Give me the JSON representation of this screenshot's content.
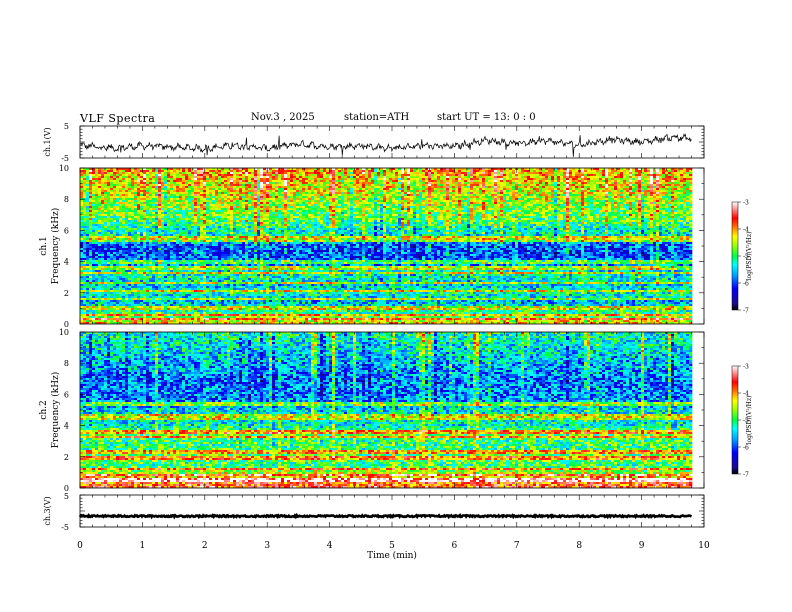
{
  "header": {
    "title": "VLF  Spectra",
    "date": "Nov.3  , 2025",
    "station": "station=ATH",
    "start_ut": "start  UT  =    13: 0   : 0"
  },
  "chart_data": [
    {
      "type": "line",
      "panel": "ch1-waveform",
      "ylabel": "ch.1(V)",
      "yticks": [
        "5",
        "-5"
      ],
      "ylim": [
        -5,
        5
      ],
      "xlim": [
        0,
        10
      ],
      "data_end_min": 9.8,
      "trend": {
        "x": [
          0,
          0.5,
          1.0,
          1.5,
          2.0,
          2.5,
          3.0,
          3.5,
          4.0,
          4.5,
          5.0,
          5.5,
          6.0,
          6.5,
          7.0,
          7.5,
          8.0,
          8.5,
          9.0,
          9.5,
          9.8
        ],
        "y": [
          -1.0,
          -2.0,
          -1.2,
          -1.6,
          -2.0,
          -1.0,
          -2.0,
          -0.6,
          -1.4,
          -1.2,
          -2.0,
          -1.2,
          -1.4,
          0.6,
          -0.5,
          0.4,
          -1.0,
          0.8,
          0.0,
          1.5,
          1.0
        ]
      },
      "color": "#000000"
    },
    {
      "type": "heatmap",
      "panel": "ch1-spectrogram",
      "ylabel": "ch.1\nFrequency  (kHz)",
      "ylabel_lines": [
        "ch.1",
        "Frequency  (kHz)"
      ],
      "yticks": [
        "10",
        "8",
        "6",
        "4",
        "2",
        "0"
      ],
      "ylim": [
        0,
        10
      ],
      "xlim": [
        0,
        10
      ],
      "colorbar": {
        "label": "log(PSD)(V²/Hz)",
        "ticks": [
          "-3",
          "-4",
          "-5",
          "-6",
          "-7"
        ],
        "range": [
          -7,
          -3
        ]
      },
      "profile_khz": [
        0,
        0.5,
        1,
        1.5,
        2,
        2.5,
        3,
        3.5,
        4,
        4.5,
        5,
        5.5,
        6,
        6.5,
        7,
        7.5,
        8,
        8.5,
        9,
        9.5,
        10
      ],
      "profile_log_psd": [
        -4.2,
        -4.8,
        -5.3,
        -5.6,
        -5.2,
        -5.5,
        -5.3,
        -5.4,
        -5.9,
        -6.0,
        -6.0,
        -5.3,
        -5.3,
        -5.0,
        -4.8,
        -4.7,
        -4.6,
        -4.4,
        -4.3,
        -4.2,
        -4.1
      ],
      "emission_lines_khz": [
        0.3,
        0.6,
        1.0,
        1.6,
        2.1,
        2.6,
        3.3,
        3.6,
        4.0,
        5.3,
        5.5
      ]
    },
    {
      "type": "heatmap",
      "panel": "ch2-spectrogram",
      "ylabel": "ch.2\nFrequency  (kHz)",
      "ylabel_lines": [
        "ch.2",
        "Frequency  (kHz)"
      ],
      "yticks": [
        "10",
        "8",
        "6",
        "4",
        "2",
        "0"
      ],
      "ylim": [
        0,
        10
      ],
      "xlim": [
        0,
        10
      ],
      "colorbar": {
        "label": "log(PSD)(V²/Hz)",
        "ticks": [
          "-3",
          "-4",
          "-5",
          "-6",
          "-7"
        ],
        "range": [
          -7,
          -3
        ]
      },
      "profile_khz": [
        0,
        0.5,
        1,
        1.5,
        2,
        2.5,
        3,
        3.5,
        4,
        4.5,
        5,
        5.5,
        6,
        6.5,
        7,
        7.5,
        8,
        8.5,
        9,
        9.5,
        10
      ],
      "profile_log_psd": [
        -3.6,
        -3.9,
        -4.6,
        -5.0,
        -4.8,
        -5.0,
        -5.0,
        -4.8,
        -5.3,
        -5.3,
        -5.4,
        -5.7,
        -5.8,
        -5.8,
        -5.9,
        -5.7,
        -5.6,
        -5.5,
        -5.4,
        -5.3,
        -5.2
      ],
      "emission_lines_khz": [
        0.5,
        0.8,
        1.2,
        1.9,
        2.3,
        3.3,
        3.6,
        4.5,
        4.7,
        5.4
      ]
    },
    {
      "type": "line",
      "panel": "ch3-waveform",
      "ylabel": "ch.3(V)",
      "yticks": [
        "5",
        "-5"
      ],
      "ylim": [
        -5,
        5
      ],
      "xlim": [
        0,
        10
      ],
      "data_end_min": 9.8,
      "level": -1.6,
      "color": "#000000",
      "xlabel": "Time  (min)",
      "xticks": [
        "0",
        "1",
        "2",
        "3",
        "4",
        "5",
        "6",
        "7",
        "8",
        "9",
        "10"
      ]
    }
  ]
}
